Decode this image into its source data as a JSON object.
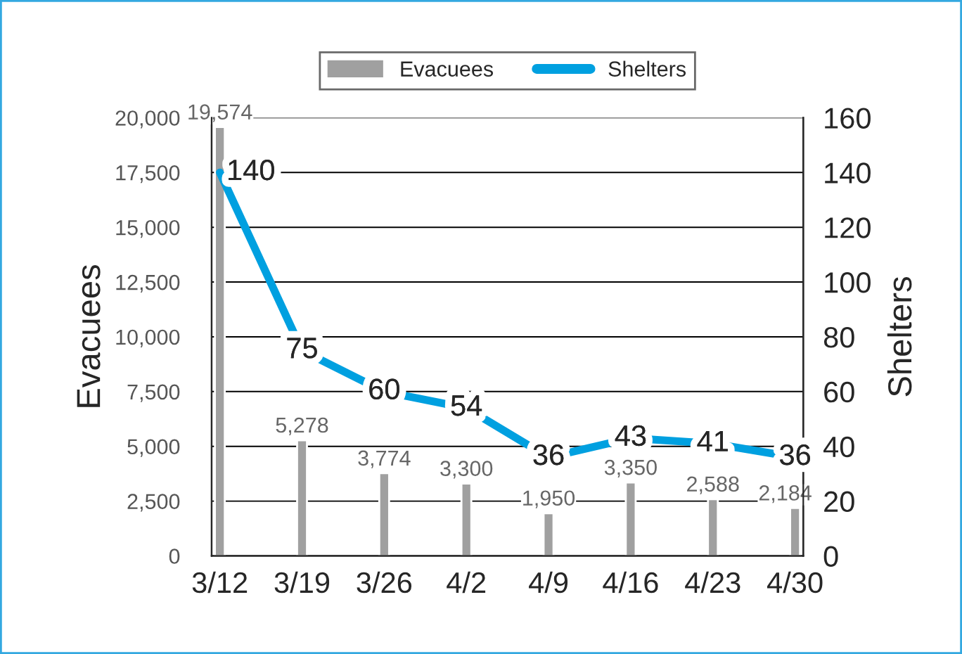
{
  "chart_data": {
    "type": "bar",
    "categories": [
      "3/12",
      "3/19",
      "3/26",
      "4/2",
      "4/9",
      "4/16",
      "4/23",
      "4/30"
    ],
    "ylabel": "Evacuees",
    "y2label": "Shelters",
    "series": [
      {
        "name": "Evacuees",
        "color": "#a0a0a0",
        "values": [
          19574,
          5278,
          3774,
          3300,
          1950,
          3350,
          2588,
          2184
        ],
        "value_labels": [
          "19,574",
          "5,278",
          "3,774",
          "3,300",
          "1,950",
          "3,350",
          "2,588",
          "2,184"
        ]
      },
      {
        "name": "Shelters",
        "type": "line",
        "axis": "y2",
        "color": "#00a0e0",
        "values": [
          140,
          75,
          60,
          54,
          36,
          43,
          41,
          36
        ],
        "value_labels": [
          "140",
          "75",
          "60",
          "54",
          "36",
          "43",
          "41",
          "36"
        ]
      }
    ],
    "ylim": [
      0,
      20000
    ],
    "yticks": [
      {
        "value": 0,
        "label": "0"
      },
      {
        "value": 2500,
        "label": "2,500"
      },
      {
        "value": 5000,
        "label": "5,000"
      },
      {
        "value": 7500,
        "label": "7,500"
      },
      {
        "value": 10000,
        "label": "10,000"
      },
      {
        "value": 12500,
        "label": "12,500"
      },
      {
        "value": 15000,
        "label": "15,000"
      },
      {
        "value": 17500,
        "label": "17,500"
      },
      {
        "value": 20000,
        "label": "20,000"
      }
    ],
    "y2lim": [
      0,
      160
    ],
    "y2ticks": [
      0,
      20,
      40,
      60,
      80,
      100,
      120,
      140,
      160
    ],
    "grid": "y",
    "legend": "top",
    "line_style": "solid"
  }
}
